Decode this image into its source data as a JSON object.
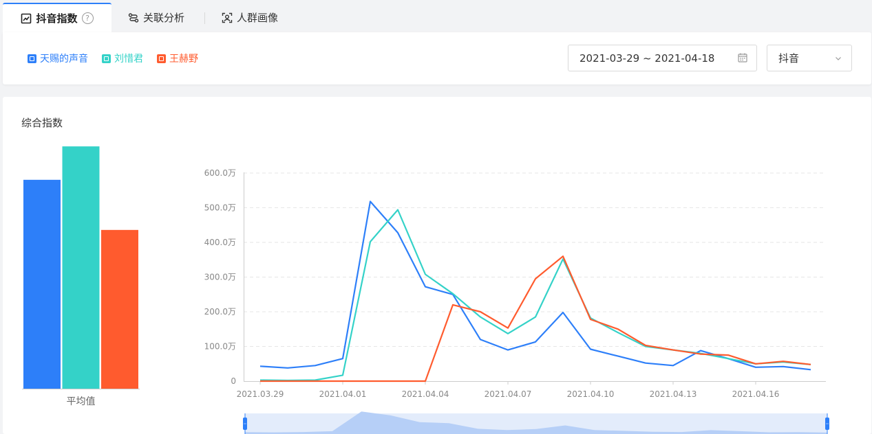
{
  "tabs": [
    {
      "label": "抖音指数",
      "icon": "trend-icon",
      "active": true
    },
    {
      "label": "关联分析",
      "icon": "relation-icon"
    },
    {
      "label": "人群画像",
      "icon": "user-scan-icon"
    }
  ],
  "help_symbol": "?",
  "filters": {
    "date_range": "2021-03-29 ~ 2021-04-18",
    "platform": "抖音"
  },
  "colors": {
    "blue": "#2d7ff9",
    "teal": "#34d2c8",
    "orange": "#ff5b2e"
  },
  "panel_title": "综合指数",
  "chart_data": [
    {
      "type": "bar",
      "categories": [
        "平均值"
      ],
      "series": [
        {
          "name": "天赐的声音",
          "values": [
            1.0
          ],
          "color": "#2d7ff9"
        },
        {
          "name": "刘惜君",
          "values": [
            1.16
          ],
          "color": "#34d2c8"
        },
        {
          "name": "王赫野",
          "values": [
            0.76
          ],
          "color": "#ff5b2e"
        }
      ],
      "ylim": [
        0,
        1.2
      ]
    },
    {
      "type": "line",
      "x": [
        "2021.03.29",
        "2021.03.30",
        "2021.03.31",
        "2021.04.01",
        "2021.04.02",
        "2021.04.03",
        "2021.04.04",
        "2021.04.05",
        "2021.04.06",
        "2021.04.07",
        "2021.04.08",
        "2021.04.09",
        "2021.04.10",
        "2021.04.11",
        "2021.04.12",
        "2021.04.13",
        "2021.04.14",
        "2021.04.15",
        "2021.04.16",
        "2021.04.17",
        "2021.04.18"
      ],
      "xticks": [
        "2021.03.29",
        "2021.04.01",
        "2021.04.04",
        "2021.04.07",
        "2021.04.10",
        "2021.04.13",
        "2021.04.16"
      ],
      "yticks": [
        "0",
        "100.0万",
        "200.0万",
        "300.0万",
        "400.0万",
        "500.0万",
        "600.0万"
      ],
      "ylim": [
        0,
        600
      ],
      "grid": true,
      "series": [
        {
          "name": "天赐的声音",
          "color": "#2d7ff9",
          "values": [
            43,
            38,
            45,
            65,
            518,
            428,
            272,
            250,
            120,
            90,
            113,
            198,
            92,
            72,
            52,
            45,
            88,
            65,
            40,
            42,
            33
          ]
        },
        {
          "name": "刘惜君",
          "color": "#34d2c8",
          "values": [
            3,
            2,
            3,
            17,
            402,
            494,
            308,
            252,
            185,
            137,
            185,
            352,
            182,
            140,
            100,
            90,
            80,
            65,
            50,
            55,
            48
          ]
        },
        {
          "name": "王赫野",
          "color": "#ff5b2e",
          "values": [
            0,
            0,
            0,
            0,
            0,
            0,
            0,
            220,
            200,
            153,
            295,
            360,
            178,
            150,
            103,
            90,
            78,
            75,
            50,
            57,
            48
          ]
        }
      ]
    }
  ]
}
